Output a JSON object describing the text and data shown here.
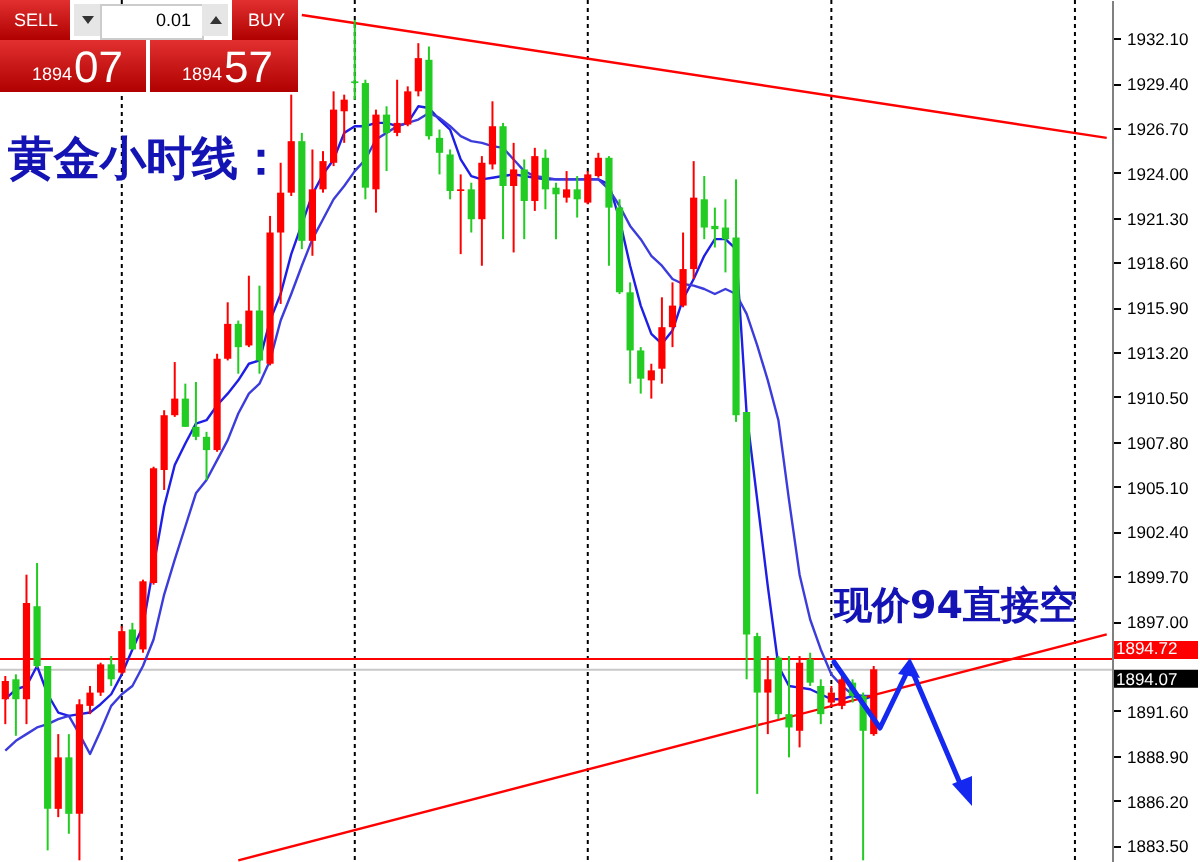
{
  "chart_data": {
    "type": "candlestick",
    "title": "黄金小时线：",
    "categories": [
      null,
      null,
      null,
      null,
      null,
      null,
      null,
      null,
      null,
      null,
      null,
      null,
      null,
      null,
      null,
      null,
      null,
      null,
      null,
      null,
      null,
      null,
      null,
      null,
      null,
      null,
      null,
      null,
      null,
      null,
      null,
      null,
      null,
      null,
      null,
      null,
      null,
      null,
      null,
      null,
      null,
      null,
      null,
      null,
      null,
      null,
      null,
      null,
      null,
      null,
      null,
      null,
      null,
      null,
      null,
      null,
      null,
      null,
      null,
      null,
      null,
      null,
      null,
      null,
      null,
      null,
      null,
      null,
      null,
      null,
      null,
      null,
      null,
      null,
      null,
      null,
      null,
      null,
      null,
      null,
      null,
      null,
      null,
      null,
      null,
      null,
      null,
      null,
      null,
      null,
      null,
      null,
      null,
      null,
      null,
      null,
      null,
      null,
      null,
      null,
      null,
      null,
      null,
      null,
      null
    ],
    "ohlc": [
      [
        1892.3,
        1893.7,
        1890.8,
        1893.4
      ],
      [
        1893.5,
        1893.8,
        1890.1,
        1892.3
      ],
      [
        1892.3,
        1899.8,
        1890.8,
        1898.1
      ],
      [
        1897.9,
        1900.5,
        1894.2,
        1894.3
      ],
      [
        1894.3,
        1894.3,
        1883.2,
        1885.7
      ],
      [
        1885.7,
        1890.2,
        1885.2,
        1888.8
      ],
      [
        1888.8,
        1890.2,
        1884.2,
        1885.4
      ],
      [
        1885.4,
        1892.3,
        1882.6,
        1892.0
      ],
      [
        1891.9,
        1893.1,
        1891.4,
        1892.7
      ],
      [
        1892.7,
        1894.5,
        1892.5,
        1894.4
      ],
      [
        1894.4,
        1894.9,
        1893.1,
        1893.5
      ],
      [
        1893.9,
        1896.7,
        1893.8,
        1896.4
      ],
      [
        1896.5,
        1896.9,
        1895.3,
        1895.3
      ],
      [
        1895.3,
        1899.5,
        1895.1,
        1899.4
      ],
      [
        1899.3,
        1906.3,
        1899.2,
        1906.2
      ],
      [
        1906.1,
        1909.7,
        1904.9,
        1909.4
      ],
      [
        1909.4,
        1912.6,
        1909.3,
        1910.4
      ],
      [
        1910.4,
        1911.3,
        1908.7,
        1908.7
      ],
      [
        1908.7,
        1911.4,
        1907.9,
        1908.1
      ],
      [
        1908.1,
        1908.4,
        1905.5,
        1907.3
      ],
      [
        1907.3,
        1913.1,
        1907.2,
        1912.8
      ],
      [
        1912.8,
        1916.2,
        1912.7,
        1914.9
      ],
      [
        1914.9,
        1915.1,
        1911.9,
        1913.5
      ],
      [
        1913.6,
        1917.8,
        1913.5,
        1915.7
      ],
      [
        1915.7,
        1917.2,
        1911.9,
        1912.7
      ],
      [
        1912.5,
        1921.4,
        1912.4,
        1920.4
      ],
      [
        1920.4,
        1924.6,
        1916.1,
        1922.8
      ],
      [
        1922.8,
        1928.7,
        1922.6,
        1925.9
      ],
      [
        1925.9,
        1926.4,
        1919.4,
        1919.9
      ],
      [
        1919.9,
        1925.4,
        1919.0,
        1923.0
      ],
      [
        1923.0,
        1925.3,
        1922.8,
        1924.7
      ],
      [
        1924.6,
        1928.9,
        1924.4,
        1927.8
      ],
      [
        1927.7,
        1928.7,
        1925.8,
        1928.4
      ],
      [
        1929.5,
        1933.2,
        1928.4,
        1929.4
      ],
      [
        1929.4,
        1929.6,
        1922.4,
        1923.1
      ],
      [
        1923.0,
        1927.8,
        1921.6,
        1927.5
      ],
      [
        1927.5,
        1928.0,
        1924.1,
        1926.4
      ],
      [
        1926.4,
        1929.6,
        1926.2,
        1927.0
      ],
      [
        1926.9,
        1929.2,
        1926.8,
        1928.9
      ],
      [
        1928.9,
        1931.8,
        1928.6,
        1930.9
      ],
      [
        1930.8,
        1931.6,
        1926.0,
        1926.2
      ],
      [
        1926.1,
        1926.6,
        1923.9,
        1925.2
      ],
      [
        1925.1,
        1925.4,
        1922.4,
        1922.9
      ],
      [
        1922.9,
        1923.9,
        1919.1,
        1923.0
      ],
      [
        1923.0,
        1923.4,
        1920.4,
        1921.2
      ],
      [
        1921.2,
        1925.0,
        1918.4,
        1924.6
      ],
      [
        1924.5,
        1928.3,
        1924.2,
        1926.8
      ],
      [
        1926.8,
        1927.0,
        1920.0,
        1923.2
      ],
      [
        1923.2,
        1925.8,
        1919.2,
        1924.2
      ],
      [
        1924.2,
        1924.8,
        1920.0,
        1922.3
      ],
      [
        1922.3,
        1925.5,
        1921.7,
        1925.0
      ],
      [
        1924.9,
        1925.4,
        1921.8,
        1923.0
      ],
      [
        1923.1,
        1923.4,
        1920.0,
        1922.7
      ],
      [
        1922.5,
        1924.1,
        1922.2,
        1923.0
      ],
      [
        1923.0,
        1923.8,
        1921.3,
        1922.4
      ],
      [
        1922.2,
        1924.1,
        1922.1,
        1923.9
      ],
      [
        1923.8,
        1925.2,
        1923.7,
        1924.9
      ],
      [
        1924.9,
        1925.0,
        1918.4,
        1921.9
      ],
      [
        1921.9,
        1922.4,
        1916.7,
        1916.8
      ],
      [
        1916.8,
        1917.4,
        1911.3,
        1913.3
      ],
      [
        1913.3,
        1913.5,
        1910.7,
        1911.6
      ],
      [
        1911.5,
        1912.5,
        1910.4,
        1912.1
      ],
      [
        1912.2,
        1916.5,
        1911.3,
        1914.7
      ],
      [
        1914.7,
        1917.4,
        1913.5,
        1916.0
      ],
      [
        1916.0,
        1920.4,
        1915.9,
        1918.2
      ],
      [
        1918.2,
        1924.7,
        1917.6,
        1922.5
      ],
      [
        1922.4,
        1923.8,
        1920.0,
        1920.7
      ],
      [
        1920.8,
        1921.9,
        1919.5,
        1920.6
      ],
      [
        1920.7,
        1922.4,
        1918.0,
        1920.0
      ],
      [
        1920.1,
        1923.6,
        1909.0,
        1909.4
      ],
      [
        1909.6,
        1909.6,
        1893.5,
        1896.2
      ],
      [
        1896.1,
        1896.3,
        1886.6,
        1892.7
      ],
      [
        1892.7,
        1894.9,
        1890.2,
        1893.5
      ],
      [
        1894.8,
        1894.9,
        1891.1,
        1891.4
      ],
      [
        1891.4,
        1894.9,
        1888.8,
        1890.6
      ],
      [
        1890.4,
        1894.9,
        1889.4,
        1894.5
      ],
      [
        1894.7,
        1895.1,
        1893.1,
        1893.3
      ],
      [
        1893.1,
        1893.5,
        1890.8,
        1891.4
      ],
      [
        1892.1,
        1893.1,
        1891.9,
        1892.7
      ],
      [
        1891.9,
        1893.7,
        1891.7,
        1893.5
      ],
      [
        1893.3,
        1893.5,
        1892.1,
        1892.5
      ],
      [
        1892.5,
        1892.7,
        1882.6,
        1890.4
      ],
      [
        1890.2,
        1894.3,
        1890.1,
        1894.1
      ],
      null,
      null,
      null,
      null,
      null,
      null,
      null,
      null,
      null,
      null,
      null,
      null,
      null,
      null,
      null,
      null,
      null,
      null,
      null,
      null,
      null,
      null
    ],
    "colors": [
      "#ff0000",
      "#22cc22",
      "#ff0000",
      "#22cc22",
      "#22cc22",
      "#ff0000",
      "#22cc22",
      "#ff0000",
      "#ff0000",
      "#ff0000",
      "#22cc22",
      "#ff0000",
      "#22cc22",
      "#ff0000",
      "#ff0000",
      "#ff0000",
      "#ff0000",
      "#22cc22",
      "#22cc22",
      "#22cc22",
      "#ff0000",
      "#ff0000",
      "#22cc22",
      "#ff0000",
      "#22cc22",
      "#ff0000",
      "#ff0000",
      "#ff0000",
      "#22cc22",
      "#ff0000",
      "#ff0000",
      "#ff0000",
      "#ff0000",
      "#22cc22",
      "#22cc22",
      "#ff0000",
      "#22cc22",
      "#ff0000",
      "#ff0000",
      "#ff0000",
      "#22cc22",
      "#22cc22",
      "#22cc22",
      "#ff0000",
      "#22cc22",
      "#ff0000",
      "#ff0000",
      "#22cc22",
      "#ff0000",
      "#22cc22",
      "#ff0000",
      "#22cc22",
      "#22cc22",
      "#ff0000",
      "#22cc22",
      "#ff0000",
      "#ff0000",
      "#22cc22",
      "#22cc22",
      "#22cc22",
      "#22cc22",
      "#ff0000",
      "#ff0000",
      "#ff0000",
      "#ff0000",
      "#ff0000",
      "#22cc22",
      "#22cc22",
      "#22cc22",
      "#22cc22",
      "#22cc22",
      "#22cc22",
      "#ff0000",
      "#22cc22",
      "#22cc22",
      "#ff0000",
      "#22cc22",
      "#22cc22",
      "#ff0000",
      "#ff0000",
      "#22cc22",
      "#22cc22",
      "#ff0000",
      null,
      null,
      null,
      null,
      null,
      null,
      null,
      null,
      null,
      null,
      null,
      null,
      null,
      null,
      null,
      null,
      null,
      null,
      null,
      null,
      null,
      null
    ],
    "series": [
      {
        "type": "line",
        "color": "#1e1ee6",
        "values": [
          1892.3,
          1892.9,
          1893.1,
          1894.3,
          1892.6,
          1891.5,
          1891.3,
          1891.4,
          1891.5,
          1892.0,
          1892.6,
          1893.8,
          1895.3,
          1896.7,
          null,
          1903.9,
          1906.4,
          1907.7,
          1908.9,
          1909.1,
          1910.0,
          1910.7,
          1911.5,
          1912.5,
          1912.7,
          1915.1,
          1916.7,
          1919.1,
          null,
          1922.7,
          1923.9,
          1924.8,
          1926.4,
          1926.8,
          1926.8,
          1927.0,
          1927.0,
          1926.8,
          1927.0,
          1928.0,
          1927.9,
          1927.2,
          1926.6,
          1924.8,
          1923.8,
          1923.6,
          1923.7,
          1923.8,
          1923.9,
          1923.8,
          1923.7,
          1923.6,
          1923.6,
          1923.6,
          1923.6,
          1923.6,
          1923.6,
          1923.3,
          1921.2,
          1918.4,
          1916.0,
          1914.3,
          1913.7,
          1914.5,
          1916.4,
          1917.6,
          1919.0,
          1920.0,
          1920.0,
          1919.4,
          1909.5,
          1904.3,
          1899.1,
          1894.3,
          1893.1,
          1893.0,
          1892.9,
          1892.6,
          1892.3,
          1892.3,
          1892.5,
          1892.3,
          1892.5,
          null,
          null,
          null,
          null,
          null,
          null,
          null,
          null,
          null,
          null,
          null,
          null,
          null,
          null,
          null,
          null,
          null,
          null,
          null,
          null,
          null,
          null
        ]
      },
      {
        "type": "line",
        "color": "#3c3cdc",
        "values": [
          1889.2,
          1889.8,
          1890.2,
          1890.6,
          1890.8,
          1891.1,
          1891.3,
          1890.2,
          1889.0,
          1890.4,
          1891.9,
          1892.6,
          1893.1,
          1894.3,
          1895.9,
          1898.6,
          1900.7,
          1902.7,
          1904.7,
          1905.5,
          1906.7,
          1907.9,
          1909.5,
          1910.7,
          1911.3,
          1912.7,
          1915.1,
          1916.7,
          1918.4,
          1920.0,
          1921.2,
          1922.4,
          1923.2,
          1924.1,
          1924.8,
          1926.0,
          1926.4,
          1926.8,
          1927.0,
          1927.2,
          1927.6,
          1927.3,
          1926.8,
          1926.2,
          1925.9,
          1925.8,
          1925.6,
          1925.5,
          1924.8,
          1924.1,
          1923.8,
          1923.7,
          1923.6,
          1923.6,
          1923.6,
          1923.6,
          1923.6,
          1923.0,
          1922.0,
          1920.8,
          1920.0,
          1919.0,
          1918.4,
          1917.6,
          1917.3,
          1917.2,
          1917.0,
          1916.7,
          1917.0,
          1916.7,
          1915.5,
          1913.6,
          1911.5,
          1909.1,
          1904.3,
          1899.8,
          1897.1,
          1895.3,
          1893.8,
          1893.1,
          1892.6,
          1892.5,
          1892.5,
          null,
          null,
          null,
          null,
          null,
          null,
          null,
          null,
          null,
          null,
          null,
          null,
          null,
          null,
          null,
          null,
          null,
          null,
          null,
          null,
          null,
          null
        ]
      },
      {
        "type": "line",
        "color": "#ff0000",
        "values": [
          null,
          null,
          null,
          null,
          null,
          null,
          null,
          null,
          null,
          null,
          null,
          null,
          null,
          null,
          null,
          null,
          null,
          null,
          null,
          null,
          null,
          null,
          null,
          null,
          null,
          null,
          null,
          null,
          1933.5,
          null,
          null,
          null,
          null,
          null,
          null,
          null,
          null,
          null,
          null,
          null,
          null,
          null,
          null,
          null,
          null,
          null,
          null,
          null,
          null,
          null,
          null,
          null,
          null,
          null,
          null,
          null,
          null,
          null,
          null,
          null,
          null,
          null,
          null,
          null,
          null,
          null,
          null,
          null,
          null,
          null,
          null,
          null,
          null,
          null,
          null,
          null,
          null,
          null,
          null,
          null,
          null,
          null,
          null,
          null,
          null,
          null,
          null,
          null,
          null,
          null,
          null,
          null,
          null,
          null,
          null,
          null,
          null,
          null,
          null,
          null,
          null,
          null,
          null,
          null,
          1926.1
        ]
      },
      {
        "type": "line",
        "color": "#ff0000",
        "values": [
          null,
          null,
          null,
          null,
          null,
          null,
          null,
          null,
          null,
          null,
          null,
          null,
          null,
          null,
          null,
          null,
          null,
          null,
          null,
          null,
          null,
          null,
          1882.6,
          null,
          null,
          null,
          null,
          null,
          null,
          null,
          null,
          null,
          null,
          null,
          null,
          null,
          null,
          null,
          null,
          null,
          null,
          null,
          null,
          null,
          null,
          null,
          null,
          null,
          null,
          null,
          null,
          null,
          null,
          null,
          null,
          null,
          null,
          null,
          null,
          null,
          null,
          null,
          null,
          null,
          null,
          null,
          null,
          null,
          null,
          null,
          null,
          null,
          null,
          null,
          null,
          null,
          null,
          null,
          null,
          null,
          null,
          null,
          null,
          null,
          null,
          null,
          null,
          null,
          null,
          null,
          null,
          null,
          null,
          null,
          null,
          null,
          null,
          null,
          null,
          null,
          null,
          null,
          null,
          null,
          1896.2
        ]
      }
    ],
    "ylim": [
      1882.5,
      1934.4
    ],
    "yticks": [
      {
        "value": 1932.1,
        "label": "1932.10"
      },
      {
        "value": 1929.4,
        "label": "1929.40"
      },
      {
        "value": 1926.7,
        "label": "1926.70"
      },
      {
        "value": 1924,
        "label": "1924.00"
      },
      {
        "value": 1921.3,
        "label": "1921.30"
      },
      {
        "value": 1918.6,
        "label": "1918.60"
      },
      {
        "value": 1915.9,
        "label": "1915.90"
      },
      {
        "value": 1913.2,
        "label": "1913.20"
      },
      {
        "value": 1910.5,
        "label": "1910.50"
      },
      {
        "value": 1907.8,
        "label": "1907.80"
      },
      {
        "value": 1905.1,
        "label": "1905.10"
      },
      {
        "value": 1902.4,
        "label": "1902.40"
      },
      {
        "value": 1899.7,
        "label": "1899.70"
      },
      {
        "value": 1897,
        "label": "1897.00"
      },
      {
        "value": 1891.6,
        "label": "1891.60"
      },
      {
        "value": 1888.9,
        "label": "1888.90"
      },
      {
        "value": 1886.2,
        "label": "1886.20"
      },
      {
        "value": 1883.5,
        "label": "1883.50"
      }
    ],
    "tick_labels": "y",
    "grid": "x",
    "ref_lines": [
      {
        "axis": "y",
        "value": 1894.72,
        "label": "1894.72",
        "color": "#ff0000"
      },
      {
        "axis": "y",
        "value": 1894.07,
        "label": "1894.07",
        "color": "#c8c8c8"
      }
    ],
    "annotations": [
      "现价94直接空",
      "SELL",
      "0.01",
      "BUY",
      "1894",
      "07",
      "1894",
      "57"
    ]
  }
}
